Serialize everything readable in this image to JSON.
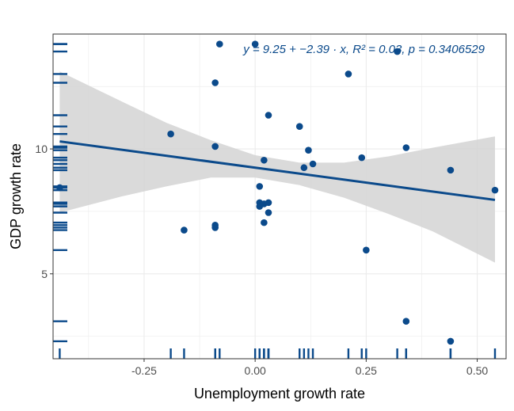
{
  "chart_data": {
    "type": "scatter",
    "xlabel": "Unemployment growth rate",
    "ylabel": "GDP growth rate",
    "xlim": [
      -0.455,
      0.565
    ],
    "ylim": [
      1.6,
      14.6
    ],
    "x_ticks": [
      -0.25,
      0.0,
      0.25,
      0.5
    ],
    "x_tick_labels": [
      "-0.25",
      "0.00",
      "0.25",
      "0.50"
    ],
    "y_ticks": [
      5,
      10
    ],
    "y_tick_labels": [
      "5",
      "10"
    ],
    "grid": true,
    "annotation": "y = 9.25 + −2.39 · x,  R² = 0.03,  p = 0.3406529",
    "points": [
      {
        "x": -0.44,
        "y": 8.45
      },
      {
        "x": -0.19,
        "y": 10.6
      },
      {
        "x": -0.16,
        "y": 6.75
      },
      {
        "x": -0.09,
        "y": 12.65
      },
      {
        "x": -0.09,
        "y": 10.1
      },
      {
        "x": -0.09,
        "y": 6.95
      },
      {
        "x": -0.09,
        "y": 6.85
      },
      {
        "x": -0.08,
        "y": 14.2
      },
      {
        "x": 0.0,
        "y": 14.2
      },
      {
        "x": 0.01,
        "y": 8.5
      },
      {
        "x": 0.01,
        "y": 7.85
      },
      {
        "x": 0.01,
        "y": 7.7
      },
      {
        "x": 0.02,
        "y": 9.55
      },
      {
        "x": 0.02,
        "y": 7.05
      },
      {
        "x": 0.02,
        "y": 7.8
      },
      {
        "x": 0.03,
        "y": 11.35
      },
      {
        "x": 0.03,
        "y": 7.85
      },
      {
        "x": 0.03,
        "y": 7.45
      },
      {
        "x": 0.1,
        "y": 10.9
      },
      {
        "x": 0.11,
        "y": 9.25
      },
      {
        "x": 0.12,
        "y": 9.95
      },
      {
        "x": 0.13,
        "y": 9.4
      },
      {
        "x": 0.21,
        "y": 13.0
      },
      {
        "x": 0.24,
        "y": 9.65
      },
      {
        "x": 0.25,
        "y": 5.95
      },
      {
        "x": 0.32,
        "y": 13.9
      },
      {
        "x": 0.34,
        "y": 10.05
      },
      {
        "x": 0.34,
        "y": 3.1
      },
      {
        "x": 0.44,
        "y": 9.15
      },
      {
        "x": 0.44,
        "y": 2.3
      },
      {
        "x": 0.54,
        "y": 8.35
      }
    ],
    "fit": {
      "intercept": 9.25,
      "slope": -2.39
    },
    "confidence_band": [
      {
        "x": -0.44,
        "lo": 7.45,
        "hi": 13.1
      },
      {
        "x": -0.3,
        "lo": 8.1,
        "hi": 11.9
      },
      {
        "x": -0.2,
        "lo": 8.5,
        "hi": 11.05
      },
      {
        "x": -0.1,
        "lo": 8.85,
        "hi": 10.35
      },
      {
        "x": 0.0,
        "lo": 8.85,
        "hi": 9.75
      },
      {
        "x": 0.1,
        "lo": 8.55,
        "hi": 9.45
      },
      {
        "x": 0.2,
        "lo": 8.05,
        "hi": 9.45
      },
      {
        "x": 0.3,
        "lo": 7.4,
        "hi": 9.7
      },
      {
        "x": 0.4,
        "lo": 6.7,
        "hi": 10.05
      },
      {
        "x": 0.54,
        "lo": 5.45,
        "hi": 10.5
      }
    ],
    "colors": {
      "point": "#0b4a8b",
      "fit_line": "#0b4a8b",
      "band": "#d3d3d3",
      "rug": "#0b4a8b",
      "grid": "#ebebeb",
      "panel_border": "#333333"
    }
  }
}
